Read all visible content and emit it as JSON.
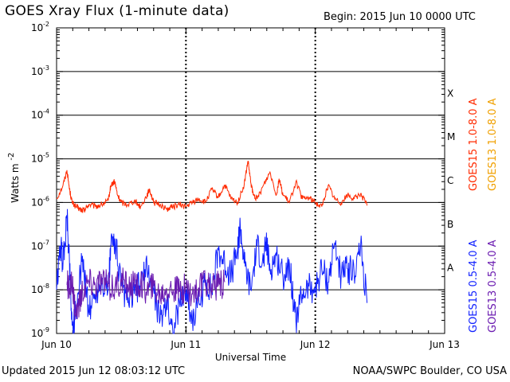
{
  "header": {
    "title": "GOES Xray Flux (1-minute data)",
    "begin": "Begin:  2015 Jun 10 0000 UTC"
  },
  "footer": {
    "updated": "Updated 2015 Jun 12 08:03:12 UTC",
    "source": "NOAA/SWPC Boulder, CO USA"
  },
  "colors": {
    "goes15_long": "#ff2a00",
    "goes13_long": "#f0a000",
    "goes15_short": "#1020ff",
    "goes13_short": "#6a1ab0",
    "background": "#ffffff",
    "axis": "#000000"
  },
  "chart_data": {
    "type": "line",
    "title": "GOES Xray Flux (1-minute data)",
    "xlabel": "Universal Time",
    "ylabel": "Watts m",
    "ylabel_superscript": "-2",
    "yscale": "log",
    "ylim_exponent": [
      -9,
      -2
    ],
    "xlim_days": [
      0,
      3
    ],
    "x_tick_labels": [
      "Jun 10",
      "Jun 11",
      "Jun 12",
      "Jun 13"
    ],
    "y_tick_exponents": [
      -9,
      -8,
      -7,
      -6,
      -5,
      -4,
      -3,
      -2
    ],
    "y_tick_base": "10",
    "flare_classes": [
      {
        "label": "A",
        "exponent": -8
      },
      {
        "label": "B",
        "exponent": -7
      },
      {
        "label": "C",
        "exponent": -6
      },
      {
        "label": "M",
        "exponent": -5
      },
      {
        "label": "X",
        "exponent": -4
      }
    ],
    "grid": {
      "horizontal": true,
      "vertical_dotted": true
    },
    "legend_position": "right",
    "series": [
      {
        "name": "GOES15 1.0-8.0 A",
        "color_key": "goes15_long",
        "x": [
          0.0,
          0.05,
          0.08,
          0.1,
          0.12,
          0.15,
          0.18,
          0.2,
          0.22,
          0.25,
          0.3,
          0.35,
          0.4,
          0.42,
          0.45,
          0.47,
          0.5,
          0.55,
          0.6,
          0.65,
          0.7,
          0.72,
          0.75,
          0.8,
          0.85,
          0.9,
          0.95,
          1.0,
          1.05,
          1.1,
          1.15,
          1.2,
          1.25,
          1.3,
          1.35,
          1.4,
          1.45,
          1.48,
          1.5,
          1.52,
          1.55,
          1.6,
          1.65,
          1.7,
          1.72,
          1.75,
          1.8,
          1.85,
          1.9,
          1.95,
          2.0,
          2.05,
          2.1,
          2.15,
          2.2,
          2.25,
          2.3,
          2.35,
          2.4
        ],
        "y": [
          1.2e-06,
          2.5e-06,
          5.5e-06,
          2e-06,
          1e-06,
          8e-07,
          7e-07,
          6.5e-07,
          7e-07,
          9e-07,
          8e-07,
          9e-07,
          1.1e-06,
          2.5e-06,
          3e-06,
          1.5e-06,
          1e-06,
          9e-07,
          1.1e-06,
          8e-07,
          1.5e-06,
          2e-06,
          1e-06,
          9e-07,
          7e-07,
          8e-07,
          9e-07,
          8e-07,
          1e-06,
          1.2e-06,
          1e-06,
          2e-06,
          1.3e-06,
          2.5e-06,
          1.2e-06,
          1e-06,
          2.5e-06,
          9e-06,
          3e-06,
          1.5e-06,
          1.2e-06,
          2.5e-06,
          5e-06,
          1.5e-06,
          3.5e-06,
          1.5e-06,
          1e-06,
          3e-06,
          1.2e-06,
          1.3e-06,
          1e-06,
          8e-07,
          2.5e-06,
          1.2e-06,
          1e-06,
          1.5e-06,
          1.2e-06,
          1.6e-06,
          8.5e-07
        ]
      },
      {
        "name": "GOES13 1.0-8.0 A",
        "color_key": "goes13_long",
        "x": [],
        "y": []
      },
      {
        "name": "GOES15 0.5-4.0 A",
        "color_key": "goes15_short",
        "x": [
          0.0,
          0.03,
          0.05,
          0.08,
          0.1,
          0.12,
          0.15,
          0.2,
          0.25,
          0.3,
          0.35,
          0.4,
          0.42,
          0.45,
          0.5,
          0.55,
          0.6,
          0.65,
          0.7,
          0.75,
          0.8,
          0.85,
          0.9,
          0.95,
          1.0,
          1.05,
          1.1,
          1.15,
          1.2,
          1.25,
          1.3,
          1.35,
          1.4,
          1.42,
          1.45,
          1.5,
          1.55,
          1.6,
          1.62,
          1.65,
          1.7,
          1.75,
          1.8,
          1.85,
          1.9,
          1.95,
          2.0,
          2.05,
          2.1,
          2.15,
          2.2,
          2.25,
          2.3,
          2.35,
          2.4
        ],
        "y": [
          1e-08,
          1e-07,
          4e-08,
          5e-07,
          4e-08,
          1.5e-09,
          3e-09,
          6e-08,
          3e-09,
          8e-09,
          1.5e-08,
          1e-08,
          1e-07,
          1.5e-07,
          1.2e-08,
          5e-09,
          8e-09,
          1.5e-08,
          3e-08,
          1e-08,
          2e-09,
          6e-09,
          1e-09,
          5e-09,
          1e-08,
          2e-09,
          5e-09,
          1.5e-08,
          1e-08,
          8e-08,
          4e-08,
          2e-08,
          9e-08,
          3e-07,
          4e-08,
          1e-08,
          1e-07,
          4e-08,
          1.2e-07,
          3e-08,
          6e-08,
          2e-08,
          4e-08,
          2e-09,
          8e-09,
          1.2e-08,
          1e-08,
          3e-08,
          1.5e-08,
          1.2e-07,
          2e-08,
          3e-08,
          2.5e-08,
          1e-07,
          5e-09
        ]
      },
      {
        "name": "GOES13 0.5-4.0 A",
        "color_key": "goes13_short",
        "x": [
          0.08,
          0.1,
          0.12,
          0.15,
          0.18,
          0.2,
          0.25,
          0.3,
          0.35,
          0.4,
          0.45,
          0.5,
          0.55,
          0.6,
          0.65,
          0.7,
          0.75,
          0.8,
          0.85,
          0.9,
          0.95,
          1.0,
          1.05,
          1.1,
          1.15,
          1.2,
          1.25,
          1.3
        ],
        "y": [
          1.3e-08,
          1.1e-08,
          1.2e-08,
          3e-09,
          5e-09,
          1e-08,
          1.5e-08,
          1.3e-08,
          1.6e-08,
          1.2e-08,
          1.1e-08,
          1.5e-08,
          1.3e-08,
          1.2e-08,
          1.4e-08,
          1e-08,
          1.2e-08,
          8e-09,
          1.1e-08,
          1e-08,
          9e-09,
          1.2e-08,
          8e-09,
          1.1e-08,
          1.3e-08,
          1.4e-08,
          1.2e-08,
          1.5e-08
        ]
      }
    ]
  }
}
